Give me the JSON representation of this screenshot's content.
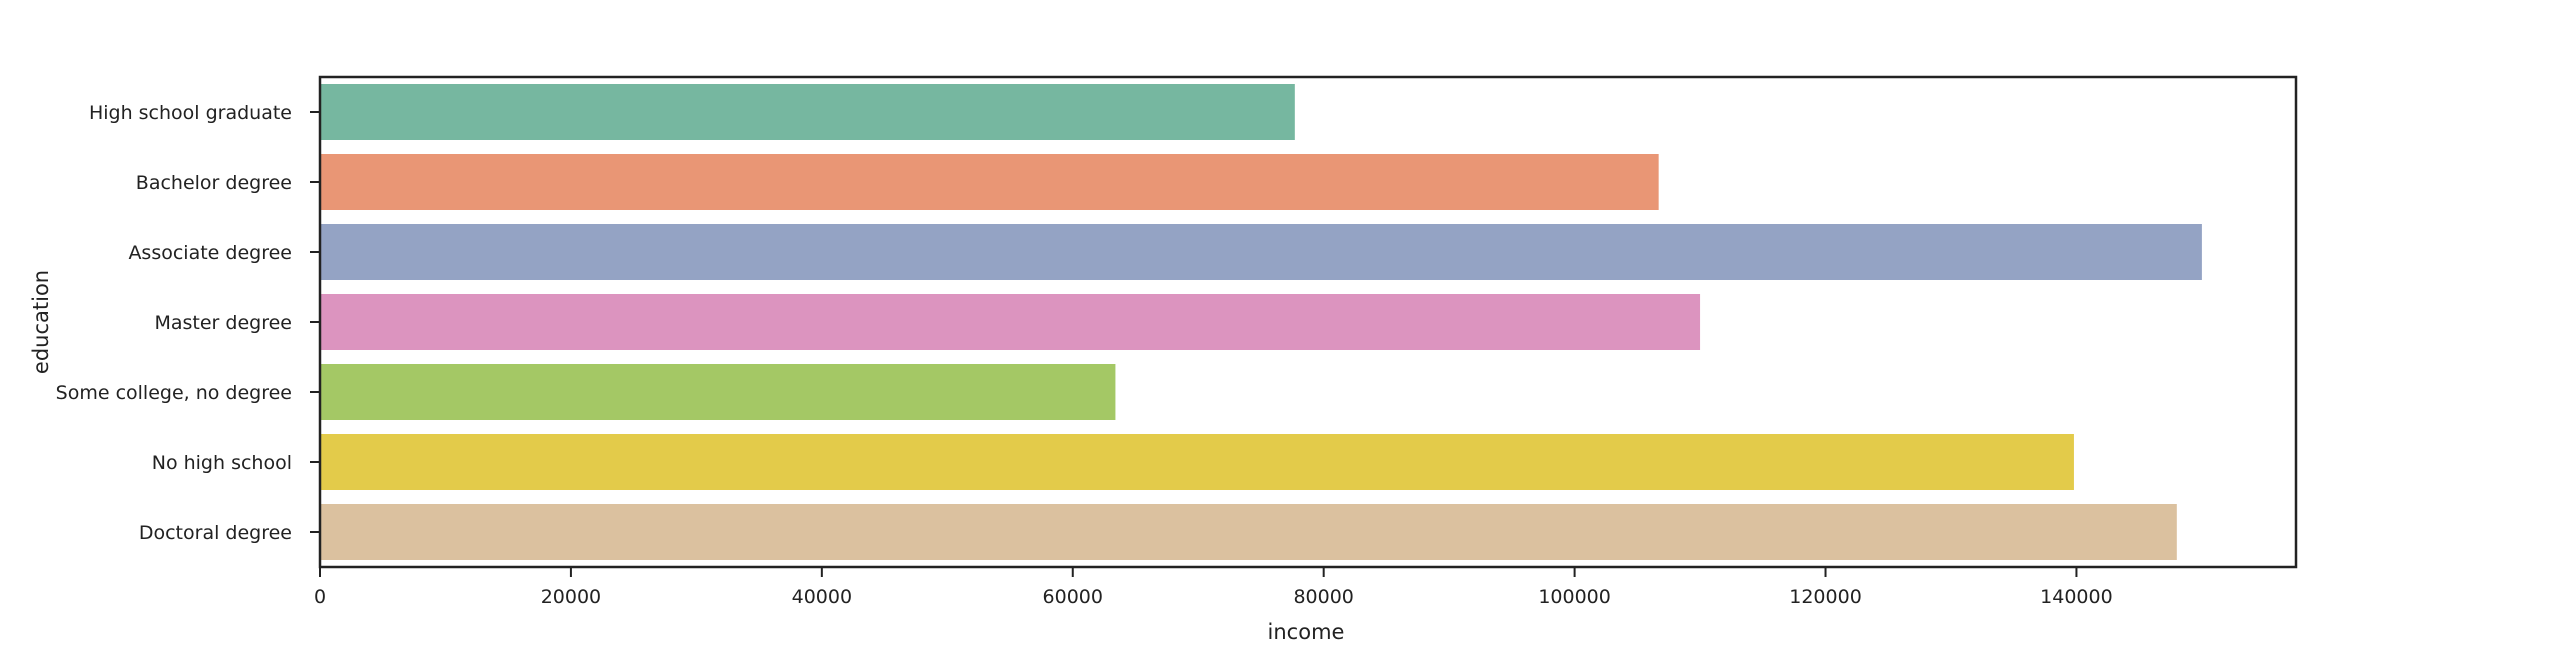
{
  "chart_data": {
    "type": "bar",
    "orientation": "horizontal",
    "title": "",
    "xlabel": "income",
    "ylabel": "education",
    "categories": [
      "High school graduate",
      "Bachelor degree",
      "Associate degree",
      "Master degree",
      "Some college, no degree",
      "No high school",
      "Doctoral degree"
    ],
    "values": [
      77700,
      106700,
      150000,
      110000,
      63400,
      139800,
      148000
    ],
    "colors": [
      "#76b7a0",
      "#e99675",
      "#94a3c4",
      "#dc94bf",
      "#a4c865",
      "#e3cb4a",
      "#dbc19f"
    ],
    "xlim": [
      0,
      157500
    ],
    "xticks": [
      0,
      20000,
      40000,
      60000,
      80000,
      100000,
      120000,
      140000
    ],
    "grid": false,
    "legend": "none"
  }
}
